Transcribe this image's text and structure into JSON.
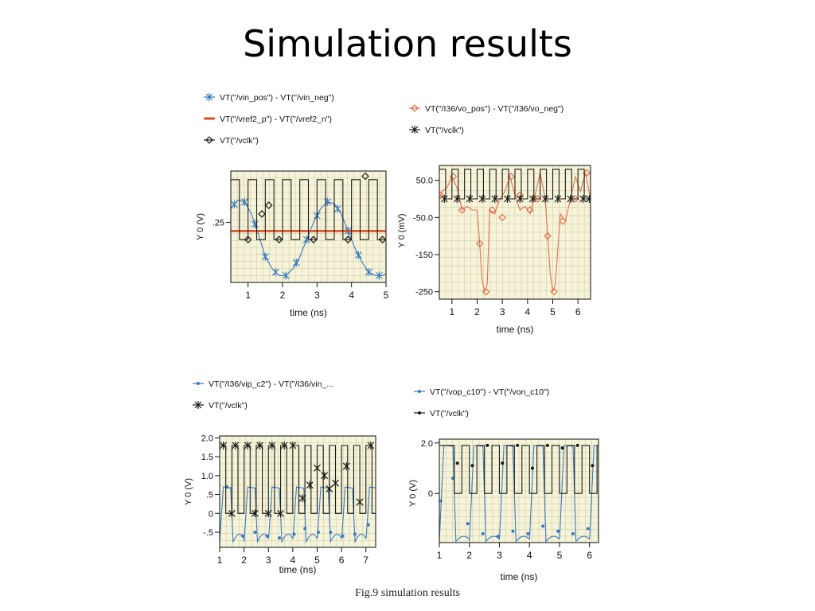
{
  "slide": {
    "title": "Simulation results",
    "caption": "Fig.9  simulation results"
  },
  "colors": {
    "plot_bg": "#f6f4d8",
    "grid": "#c9c6a8",
    "frame": "#333333",
    "clock": "#1a1a1a",
    "blue": "#3a78c0",
    "red": "#d84a20",
    "orange": "#e07050"
  },
  "chart_data": [
    {
      "type": "line",
      "xlabel": "time (ns)",
      "ylabel": "Y 0 (V)",
      "xlim": [
        0.5,
        5
      ],
      "ylim": [
        -0.1,
        0.55
      ],
      "xticks": [
        1,
        2,
        3,
        4,
        5
      ],
      "xtick_labels": [
        "1",
        "2",
        "3",
        "4",
        "5"
      ],
      "yticks": [
        0.25
      ],
      "ytick_labels": [
        ".25"
      ],
      "series": [
        {
          "name": "VT(\"/vin_pos\") - VT(\"/vin_neg\")",
          "marker": "asterisk",
          "color_key": "blue",
          "x": [
            0.5,
            0.7,
            0.9,
            1.1,
            1.3,
            1.5,
            1.7,
            1.9,
            2.1,
            2.3,
            2.5,
            2.7,
            2.9,
            3.1,
            3.3,
            3.5,
            3.7,
            3.9,
            4.1,
            4.3,
            4.5,
            4.7,
            4.9,
            5.0
          ],
          "y": [
            0.33,
            0.38,
            0.37,
            0.3,
            0.18,
            0.05,
            -0.02,
            -0.06,
            -0.06,
            -0.02,
            0.05,
            0.15,
            0.25,
            0.33,
            0.37,
            0.36,
            0.3,
            0.2,
            0.1,
            0.02,
            -0.04,
            -0.06,
            -0.06,
            -0.05
          ],
          "marker_x": [
            0.6,
            0.9,
            1.2,
            1.5,
            1.8,
            2.1,
            2.4,
            2.7,
            3.0,
            3.3,
            3.6,
            3.9,
            4.2,
            4.5,
            4.8
          ]
        },
        {
          "name": "VT(\"/vref2_p\") - VT(\"/vref2_n\")",
          "marker": "dash",
          "color_key": "red",
          "x": [
            0.5,
            5.0
          ],
          "y": [
            0.2,
            0.2
          ]
        },
        {
          "name": "VT(\"/vclk\")",
          "marker": "diamond",
          "color_key": "clock",
          "clock": {
            "period": 0.5,
            "start": 0.5,
            "high": 0.5,
            "low": 0.15,
            "duty": 0.5
          },
          "marker_x": [
            1.0,
            1.9,
            2.9,
            3.9,
            4.9
          ],
          "marker_y": [
            0.15,
            0.15,
            0.15,
            0.15,
            0.15
          ],
          "marker2_x": [
            1.4,
            1.6,
            4.4
          ],
          "marker2_y": [
            0.3,
            0.35,
            0.52
          ]
        }
      ]
    },
    {
      "type": "line",
      "xlabel": "time (ns)",
      "ylabel": "Y 0 (mV)",
      "xlim": [
        0.5,
        6.5
      ],
      "ylim": [
        -270,
        90
      ],
      "xticks": [
        1,
        2,
        3,
        4,
        5,
        6
      ],
      "xtick_labels": [
        "1",
        "2",
        "3",
        "4",
        "5",
        "6"
      ],
      "yticks": [
        50,
        -50,
        -150,
        -250
      ],
      "ytick_labels": [
        "50.0",
        "-50.0",
        "-150",
        "-250"
      ],
      "series": [
        {
          "name": "VT(\"/I36/vo_pos\") - VT(\"/I36/vo_neg\")",
          "marker": "diamond",
          "color_key": "orange",
          "x": [
            0.5,
            0.6,
            0.8,
            1.0,
            1.2,
            1.4,
            1.6,
            1.8,
            2.0,
            2.1,
            2.2,
            2.3,
            2.4,
            2.5,
            2.7,
            2.9,
            3.1,
            3.3,
            3.5,
            3.7,
            3.9,
            4.1,
            4.3,
            4.5,
            4.7,
            4.8,
            4.9,
            5.0,
            5.1,
            5.3,
            5.5,
            5.7,
            5.9,
            6.1,
            6.3,
            6.5
          ],
          "y": [
            0,
            20,
            30,
            60,
            30,
            -30,
            -20,
            -30,
            -30,
            -120,
            -220,
            -250,
            -230,
            -30,
            -40,
            0,
            20,
            60,
            10,
            -30,
            -20,
            -40,
            10,
            70,
            0,
            -100,
            -200,
            -250,
            -230,
            -40,
            -60,
            0,
            60,
            20,
            70,
            0
          ],
          "marker_x": [
            0.55,
            1.05,
            1.4,
            2.1,
            2.35,
            2.6,
            3.0,
            3.35,
            3.7,
            4.1,
            4.4,
            4.8,
            5.05,
            5.4,
            5.9,
            6.35
          ],
          "marker_y": [
            10,
            60,
            -30,
            -120,
            -250,
            -30,
            -50,
            60,
            10,
            -30,
            0,
            -100,
            -250,
            -60,
            0,
            70
          ]
        },
        {
          "name": "VT(\"/vclk\")",
          "marker": "asterisk",
          "color_key": "clock",
          "clock": {
            "period": 0.5,
            "start": 0.5,
            "high": 80,
            "low": 0,
            "duty": 0.5
          },
          "marker_x": [
            0.7,
            1.2,
            1.7,
            2.2,
            2.7,
            3.2,
            3.7,
            4.2,
            4.7,
            5.2,
            5.7,
            6.2,
            6.45
          ],
          "marker_y": [
            0,
            0,
            0,
            0,
            0,
            0,
            0,
            0,
            0,
            0,
            0,
            0,
            0
          ]
        }
      ]
    },
    {
      "type": "line",
      "xlabel": "time (ns)",
      "ylabel": "Y 0 (V)",
      "xlim": [
        1,
        7.4
      ],
      "ylim": [
        -0.9,
        2.05
      ],
      "xticks": [
        1,
        2,
        3,
        4,
        5,
        6,
        7
      ],
      "xtick_labels": [
        "1",
        "2",
        "3",
        "4",
        "5",
        "6",
        "7"
      ],
      "yticks": [
        2.0,
        1.5,
        1.0,
        0.5,
        0,
        -0.5
      ],
      "ytick_labels": [
        "2.0",
        "1.5",
        "1.0",
        ".5",
        "0",
        "-.5"
      ],
      "series": [
        {
          "name": "VT(\"/I36/vip_c2\") - VT(\"/I36/vin_...",
          "marker": "dot",
          "color_key": "blue",
          "pulse_period": 0.5,
          "pulse_peak": 0.7,
          "pulse_trough": -0.75,
          "marker_x": [
            1.3,
            1.95,
            2.45,
            2.95,
            3.45,
            4.05,
            4.5,
            5.05,
            5.55,
            6.05,
            6.55,
            7.1
          ],
          "marker_y": [
            0.7,
            -0.6,
            -0.5,
            -0.6,
            -0.65,
            -0.55,
            -0.4,
            -0.5,
            -0.5,
            -0.6,
            -0.55,
            -0.3
          ]
        },
        {
          "name": "VT(\"/vclk\")",
          "marker": "asterisk",
          "color_key": "clock",
          "clock": {
            "period": 0.5,
            "start": 1.0,
            "high": 1.8,
            "low": 0,
            "duty": 0.5
          },
          "marker_x": [
            1.15,
            1.65,
            2.15,
            2.65,
            3.15,
            3.65,
            4.0,
            4.4,
            4.7,
            5.0,
            5.3,
            5.5,
            5.75,
            6.2,
            6.75,
            7.2
          ],
          "marker_y": [
            1.8,
            1.8,
            1.8,
            1.8,
            1.8,
            1.8,
            1.8,
            0.4,
            0.75,
            1.2,
            1.0,
            0.65,
            0.8,
            1.25,
            0.3,
            1.8
          ],
          "marker2_x": [
            1.5,
            2.45,
            3.0,
            3.5
          ],
          "marker2_y": [
            0,
            0,
            0,
            0
          ]
        }
      ]
    },
    {
      "type": "line",
      "xlabel": "time (ns)",
      "ylabel": "Y 0 (V)",
      "xlim": [
        1,
        6.3
      ],
      "ylim": [
        -1.95,
        2.15
      ],
      "xticks": [
        1,
        2,
        3,
        4,
        5,
        6
      ],
      "xtick_labels": [
        "1",
        "2",
        "3",
        "4",
        "5",
        "6"
      ],
      "yticks": [
        2.0,
        0
      ],
      "ytick_labels": [
        "2.0",
        "0"
      ],
      "series": [
        {
          "name": "VT(\"/vop_c10\") - VT(\"/von_c10\")",
          "marker": "dot",
          "color_key": "blue",
          "pulse_period": 0.5,
          "pulse_peak": 1.9,
          "pulse_trough": -1.9,
          "marker_x": [
            1.05,
            1.45,
            1.95,
            2.45,
            2.95,
            3.45,
            3.95,
            4.45,
            4.95,
            5.45,
            5.95
          ],
          "marker_y": [
            -0.3,
            0.6,
            -1.2,
            -1.6,
            -1.7,
            -1.5,
            -1.6,
            -1.3,
            -1.5,
            -1.6,
            -1.4
          ]
        },
        {
          "name": "VT(\"/vclk\")",
          "marker": "dot",
          "color_key": "clock",
          "clock": {
            "period": 0.5,
            "start": 1.25,
            "high": 1.9,
            "low": 0,
            "duty": 0.5
          },
          "marker_x": [
            1.6,
            2.1,
            2.6,
            3.1,
            3.6,
            4.1,
            4.6,
            5.1,
            5.6,
            6.1
          ],
          "marker_y": [
            1.2,
            1.1,
            1.9,
            1.2,
            1.9,
            1.0,
            1.9,
            1.8,
            1.9,
            1.1
          ]
        }
      ]
    }
  ]
}
